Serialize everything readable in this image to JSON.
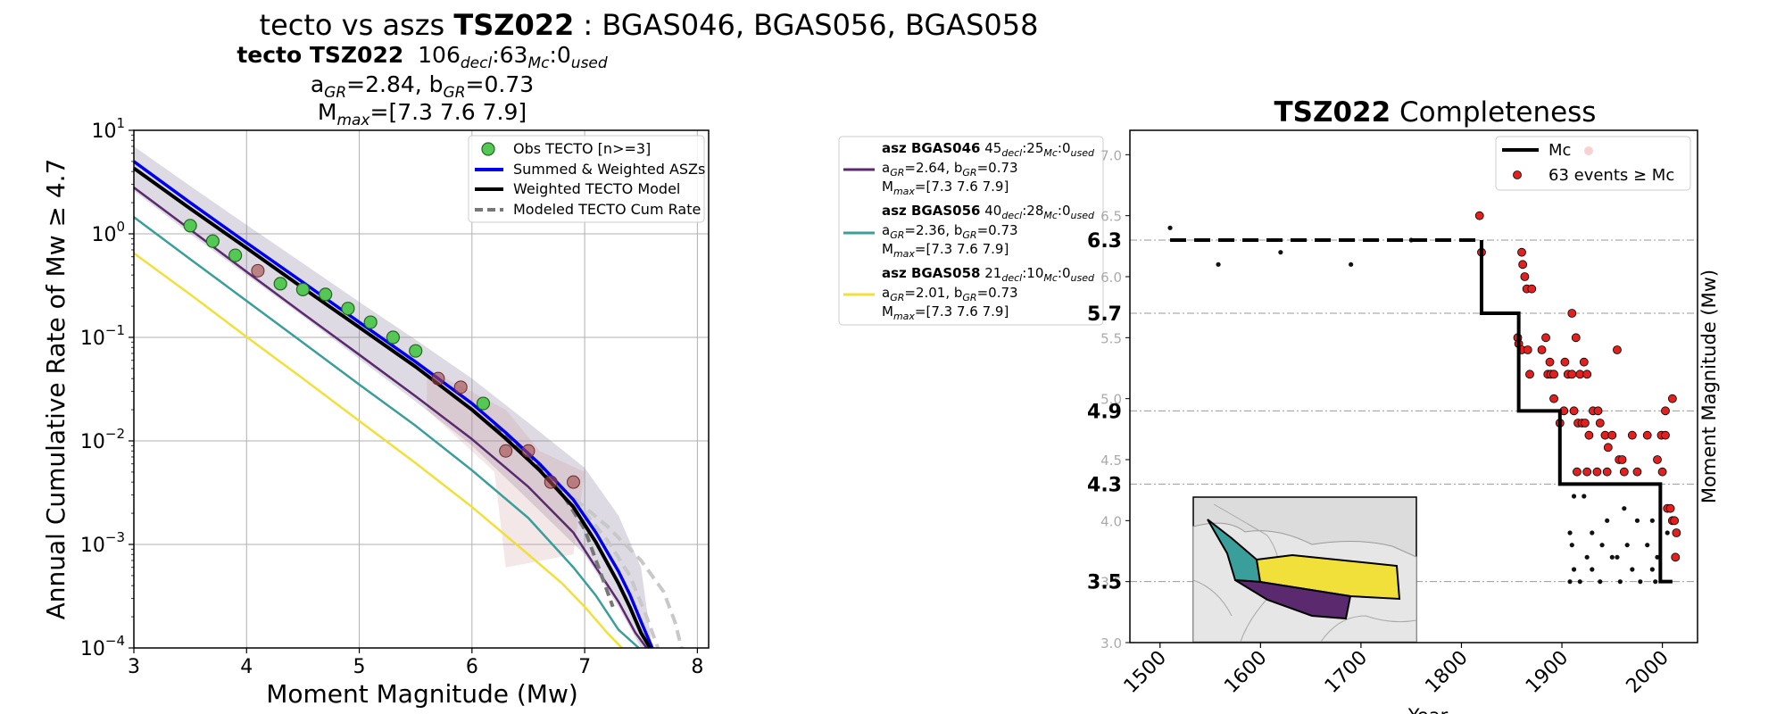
{
  "suptitle": {
    "normal1": "tecto vs aszs ",
    "bold": "TSZ022",
    "normal2": " : BGAS046, BGAS056, BGAS058"
  },
  "left_title": {
    "line1_bold": "tecto TSZ022",
    "line1_n1": "106",
    "line1_s1": "decl",
    "line1_n2": ":63",
    "line1_s2": "Mc",
    "line1_n3": ":0",
    "line1_s3": "used",
    "line2_a": "a",
    "line2_a_sub": "GR",
    "line2_a_val": "=2.84,  b",
    "line2_b_sub": "GR",
    "line2_b_val": "=0.73",
    "line3_M": "M",
    "line3_sub": "max",
    "line3_val": "=[7.3 7.6 7.9]"
  },
  "legend_left": [
    {
      "label": "Obs TECTO [n>=3]",
      "color": "#55c755",
      "kind": "marker"
    },
    {
      "label": "Summed & Weighted ASZs",
      "color": "#0000ee",
      "kind": "line"
    },
    {
      "label": "Weighted TECTO Model",
      "color": "#000000",
      "kind": "line"
    },
    {
      "label": "Modeled TECTO Cum Rate",
      "color": "#777777",
      "kind": "dash"
    }
  ],
  "legend_asz": [
    {
      "name": "asz BGAS046",
      "n1": "45",
      "n2": ":25",
      "n3": ":0",
      "a": "=2.64,  b",
      "b": "=0.73",
      "mmax": "=[7.3 7.6 7.9]",
      "color": "#5b2a6e"
    },
    {
      "name": "asz BGAS056",
      "n1": "40",
      "n2": ":28",
      "n3": ":0",
      "a": "=2.36,  b",
      "b": "=0.73",
      "mmax": "=[7.3 7.6 7.9]",
      "color": "#3a9e9a"
    },
    {
      "name": "asz BGAS058",
      "n1": "21",
      "n2": ":10",
      "n3": ":0",
      "a": "=2.01,  b",
      "b": "=0.73",
      "mmax": "=[7.3 7.6 7.9]",
      "color": "#f2e03a"
    }
  ],
  "legend_sub_labels": {
    "decl": "decl",
    "mc": "Mc",
    "used": "used",
    "gr": "GR",
    "max": "max",
    "a": "a",
    "m": "M"
  },
  "right_title": {
    "bold": "TSZ022",
    "normal": " Completeness"
  },
  "legend_right": [
    {
      "label": "Mc",
      "kind": "line"
    },
    {
      "label": "63 events ≥  Mc",
      "kind": "marker"
    }
  ],
  "chart_data": [
    {
      "type": "line",
      "xlabel": "Moment Magnitude (Mw)",
      "ylabel": "Annual Cumulative Rate of Mw  ≥  4.7",
      "xlim": [
        3,
        8.1
      ],
      "ylim": [
        0.0001,
        10
      ],
      "yscale": "log",
      "x_ticks": [
        "3",
        "4",
        "5",
        "6",
        "7",
        "8"
      ],
      "y_ticks": [
        {
          "base": "10",
          "exp": "1"
        },
        {
          "base": "10",
          "exp": "0"
        },
        {
          "base": "10",
          "exp": "−1"
        },
        {
          "base": "10",
          "exp": "−2"
        },
        {
          "base": "10",
          "exp": "−3"
        },
        {
          "base": "10",
          "exp": "−4"
        }
      ],
      "grid": true,
      "legend_position": "top-right",
      "series": [
        {
          "name": "Weighted TECTO Model",
          "color": "#000000",
          "width": 4,
          "x": [
            3.0,
            3.5,
            4.0,
            4.5,
            5.0,
            5.5,
            6.0,
            6.3,
            6.6,
            6.9,
            7.1,
            7.3,
            7.4,
            7.5,
            7.58
          ],
          "y": [
            4.3,
            1.75,
            0.73,
            0.3,
            0.125,
            0.052,
            0.02,
            0.0105,
            0.0052,
            0.0023,
            0.00105,
            0.00042,
            0.00025,
            0.00014,
            0.0001
          ]
        },
        {
          "name": "Summed & Weighted ASZs",
          "color": "#0000ee",
          "width": 3.5,
          "x": [
            3.0,
            3.5,
            4.0,
            4.5,
            5.0,
            5.5,
            6.0,
            6.3,
            6.6,
            6.9,
            7.1,
            7.3,
            7.4,
            7.5,
            7.6
          ],
          "y": [
            5.0,
            2.0,
            0.82,
            0.34,
            0.14,
            0.058,
            0.023,
            0.012,
            0.006,
            0.0027,
            0.0013,
            0.00055,
            0.00033,
            0.00018,
            0.0001
          ]
        },
        {
          "name": "asz BGAS046",
          "color": "#5b2a6e",
          "width": 2.5,
          "x": [
            3.0,
            3.5,
            4.0,
            4.5,
            5.0,
            5.5,
            6.0,
            6.5,
            6.9,
            7.1,
            7.3,
            7.45,
            7.55
          ],
          "y": [
            2.8,
            1.1,
            0.43,
            0.17,
            0.068,
            0.027,
            0.0104,
            0.0036,
            0.0013,
            0.0006,
            0.00028,
            0.00014,
            0.0001
          ]
        },
        {
          "name": "asz BGAS056",
          "color": "#3a9e9a",
          "width": 2.5,
          "x": [
            3.0,
            3.5,
            4.0,
            4.5,
            5.0,
            5.5,
            6.0,
            6.5,
            6.9,
            7.1,
            7.3,
            7.48
          ],
          "y": [
            1.45,
            0.57,
            0.225,
            0.089,
            0.035,
            0.014,
            0.0052,
            0.0018,
            0.0006,
            0.00032,
            0.00015,
            0.0001
          ]
        },
        {
          "name": "asz BGAS058",
          "color": "#f2e03a",
          "width": 2.5,
          "x": [
            3.0,
            3.5,
            4.0,
            4.5,
            5.0,
            5.5,
            6.0,
            6.5,
            6.8,
            7.0,
            7.2,
            7.33
          ],
          "y": [
            0.65,
            0.26,
            0.101,
            0.04,
            0.0156,
            0.0061,
            0.0023,
            0.0008,
            0.00042,
            0.00025,
            0.00014,
            0.0001
          ]
        },
        {
          "name": "Modeled TECTO Cum Rate",
          "color": "#777777",
          "width": 4,
          "dash": "10,6",
          "x": [
            6.2,
            6.5,
            6.8,
            7.0,
            7.15,
            7.25
          ],
          "y": [
            0.014,
            0.0073,
            0.0031,
            0.0014,
            0.0005,
            0.00025
          ]
        },
        {
          "name": "",
          "color": "#c8c8c8",
          "width": 4,
          "dash": "12,7",
          "x": [
            6.8,
            7.2,
            7.5,
            7.7,
            7.8,
            7.86
          ],
          "y": [
            0.0035,
            0.0015,
            0.0007,
            0.00035,
            0.00018,
            0.0001
          ]
        },
        {
          "name": "",
          "color": "#c8c8c8",
          "width": 4,
          "dash": "12,7",
          "x": [
            6.9,
            7.2,
            7.4,
            7.55,
            7.65
          ],
          "y": [
            0.0028,
            0.0011,
            0.0005,
            0.0002,
            0.0001
          ]
        }
      ],
      "band": {
        "x": [
          3.0,
          3.5,
          4.0,
          4.5,
          5.0,
          5.5,
          6.0,
          6.5,
          7.0,
          7.3,
          7.5,
          7.6
        ],
        "upper": [
          7.0,
          2.9,
          1.22,
          0.52,
          0.22,
          0.095,
          0.04,
          0.015,
          0.0055,
          0.0019,
          0.0006,
          0.0001
        ],
        "lower": [
          2.6,
          1.0,
          0.4,
          0.16,
          0.062,
          0.024,
          0.009,
          0.0027,
          0.0008,
          0.00025,
          0.0001,
          0.0001
        ]
      },
      "points_obs": {
        "name": "Obs TECTO [n>=3]",
        "color": "#55c755",
        "x": [
          3.5,
          3.7,
          3.9,
          4.3,
          4.5,
          4.7,
          4.9,
          5.1,
          5.3,
          5.5,
          6.1
        ],
        "y": [
          1.2,
          0.85,
          0.62,
          0.33,
          0.29,
          0.26,
          0.19,
          0.14,
          0.1,
          0.074,
          0.023
        ]
      },
      "points_other": {
        "color": "#a04848",
        "x": [
          4.1,
          5.7,
          5.9,
          6.3,
          6.5,
          6.7,
          6.9
        ],
        "y": [
          0.44,
          0.04,
          0.033,
          0.008,
          0.008,
          0.004,
          0.004
        ]
      }
    },
    {
      "type": "scatter",
      "title": "TSZ022 Completeness",
      "xlabel": "Year",
      "ylabel": "Moment Magnitude (Mw)",
      "xlim": [
        1470,
        2035
      ],
      "ylim": [
        3.0,
        7.2
      ],
      "x_ticks": [
        "1500",
        "1600",
        "1700",
        "1800",
        "1900",
        "2000"
      ],
      "y_ticks": [
        "3.0",
        "3.5",
        "4.0",
        "4.5",
        "5.0",
        "5.5",
        "6.0",
        "6.5",
        "7.0"
      ],
      "mc_levels": [
        {
          "label": "6.3",
          "value": 6.3
        },
        {
          "label": "5.7",
          "value": 5.7
        },
        {
          "label": "4.9",
          "value": 4.9
        },
        {
          "label": "4.3",
          "value": 4.3
        },
        {
          "label": "3.5",
          "value": 3.5
        }
      ],
      "mc_step": {
        "dashed": [
          [
            1510,
            6.3
          ],
          [
            1820,
            6.3
          ]
        ],
        "solid": [
          [
            1820,
            6.3
          ],
          [
            1820,
            5.7
          ],
          [
            1857,
            5.7
          ],
          [
            1857,
            4.9
          ],
          [
            1898,
            4.9
          ],
          [
            1898,
            4.3
          ],
          [
            1998,
            4.3
          ],
          [
            1998,
            3.5
          ],
          [
            2010,
            3.5
          ]
        ]
      },
      "events_above_mc": {
        "x": [
          1818,
          1820,
          1860,
          1861,
          1863,
          1865,
          1870,
          1856,
          1857,
          1860,
          1866,
          1880,
          1884,
          1888,
          1903,
          1910,
          1914,
          1868,
          1886,
          1889,
          1892,
          1906,
          1910,
          1918,
          1922,
          1925,
          1955,
          1902,
          1912,
          1916,
          1920,
          1923,
          1927,
          1931,
          1936,
          1938,
          1943,
          1946,
          1950,
          1957,
          1962,
          1970,
          1985,
          1999,
          2003,
          1995,
          2003,
          2010,
          1898,
          1915,
          1925,
          1935,
          1945,
          1960,
          1975,
          2000,
          2005,
          2008,
          2010,
          2012,
          2014,
          2013,
          1892
        ],
        "y": [
          6.5,
          6.2,
          6.2,
          6.1,
          6.0,
          5.9,
          5.9,
          5.5,
          5.45,
          5.4,
          5.4,
          5.4,
          5.5,
          5.3,
          5.3,
          5.7,
          5.5,
          5.2,
          5.2,
          5.2,
          5.2,
          5.2,
          5.2,
          5.2,
          5.3,
          5.2,
          5.4,
          4.9,
          4.9,
          4.8,
          4.8,
          4.8,
          4.7,
          4.9,
          4.9,
          4.8,
          4.7,
          4.6,
          4.7,
          4.5,
          4.4,
          4.7,
          4.7,
          4.7,
          4.7,
          4.5,
          4.9,
          5.0,
          4.8,
          4.4,
          4.4,
          4.4,
          4.4,
          4.5,
          4.4,
          4.4,
          4.1,
          4.1,
          4.0,
          4.0,
          3.9,
          3.7,
          5.0
        ],
        "color": "#e0211f"
      },
      "events_below_mc": {
        "x": [
          1510,
          1558,
          1620,
          1690,
          1750,
          1912,
          1922,
          1908,
          1930,
          1945,
          1962,
          1975,
          1990,
          1910,
          1925,
          1940,
          1955,
          1965,
          1985,
          1995,
          1912,
          1930,
          1950,
          1970,
          1990,
          2005,
          1908,
          1918,
          1938,
          1958,
          1978,
          1993
        ],
        "y": [
          6.4,
          6.1,
          6.2,
          6.1,
          6.3,
          4.2,
          4.2,
          3.9,
          3.9,
          4.0,
          4.1,
          4.0,
          4.0,
          3.8,
          3.7,
          3.8,
          3.7,
          3.8,
          3.8,
          3.7,
          3.6,
          3.6,
          3.7,
          3.6,
          3.6,
          3.9,
          3.5,
          3.5,
          3.5,
          3.5,
          3.5,
          3.5
        ],
        "color": "#111111"
      }
    }
  ]
}
